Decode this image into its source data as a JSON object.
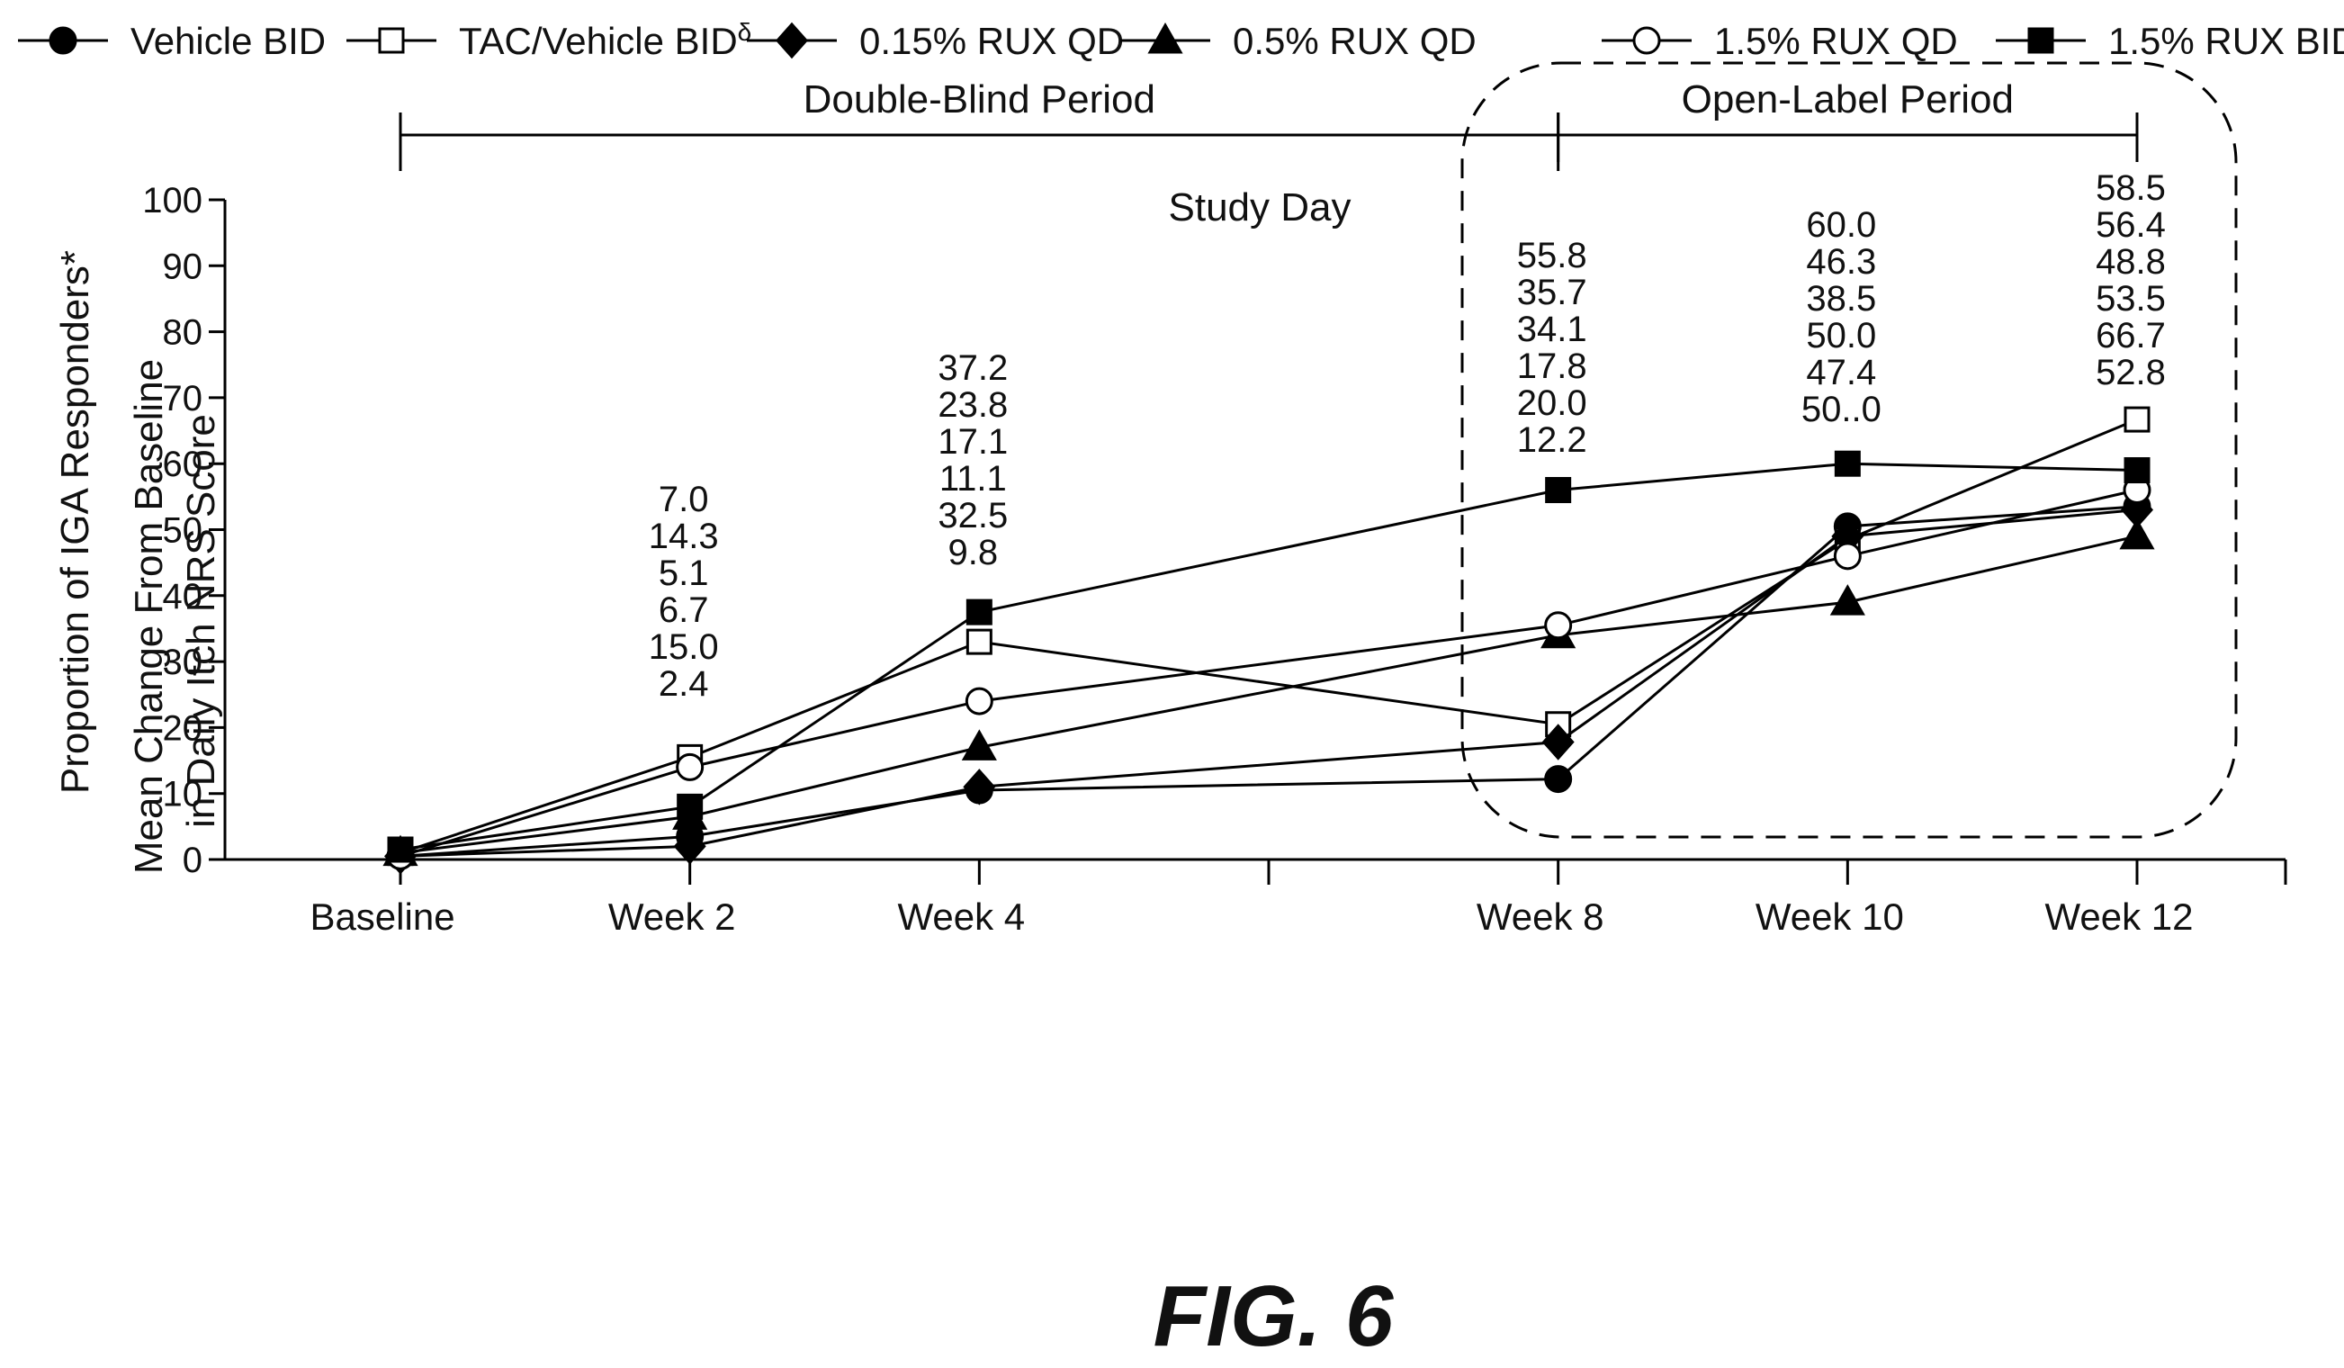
{
  "figure_label": "FIG. 6",
  "chart_data": {
    "type": "line",
    "title": "Study Day",
    "ylabel": "Proportion of IGA Responders*",
    "ylabel_overlay": [
      "Mean Change From Baseline",
      "in Daily Itch NRS Score"
    ],
    "xlabel": "",
    "ylim": [
      0,
      100
    ],
    "yticks": [
      0,
      10,
      20,
      30,
      40,
      50,
      60,
      70,
      80,
      90,
      100
    ],
    "categories": [
      "Baseline",
      "Week 2",
      "Week 4",
      "",
      "Week 8",
      "Week 10",
      "Week 12"
    ],
    "x": [
      0,
      2,
      4,
      6,
      8,
      10,
      12
    ],
    "periods": [
      {
        "label": "Double-Blind Period",
        "from": 0,
        "to": 8
      },
      {
        "label": "Open-Label Period",
        "from": 8,
        "to": 12
      }
    ],
    "legend_position": "top",
    "series": [
      {
        "name": "Vehicle BID",
        "marker": "filled-circle",
        "x": [
          0,
          2,
          4,
          8,
          10,
          12
        ],
        "values": [
          0.5,
          3.5,
          10.5,
          12.2,
          50.5,
          53.5
        ]
      },
      {
        "name": "TAC/Vehicle BID",
        "name_sup": "δ",
        "marker": "open-square",
        "x": [
          0,
          2,
          4,
          8,
          10,
          12
        ],
        "values": [
          1,
          15.5,
          33,
          20.5,
          48.5,
          66.7
        ]
      },
      {
        "name": "0.15% RUX QD",
        "marker": "filled-diamond",
        "x": [
          0,
          2,
          4,
          8,
          10,
          12
        ],
        "values": [
          0.5,
          2,
          11,
          17.8,
          49,
          53
        ]
      },
      {
        "name": "0.5% RUX QD",
        "marker": "filled-triangle",
        "x": [
          0,
          2,
          4,
          8,
          10,
          12
        ],
        "values": [
          1,
          6.5,
          17,
          34,
          39,
          49
        ]
      },
      {
        "name": "1.5% RUX QD",
        "marker": "open-circle",
        "x": [
          0,
          2,
          4,
          8,
          10,
          12
        ],
        "values": [
          0.5,
          14,
          24,
          35.5,
          46,
          56
        ]
      },
      {
        "name": "1.5% RUX BID",
        "marker": "filled-square",
        "x": [
          0,
          2,
          4,
          8,
          10,
          12
        ],
        "values": [
          1.5,
          8,
          37.5,
          56,
          60,
          59
        ]
      }
    ],
    "annotations": [
      {
        "x": 2,
        "lines": [
          "7.0",
          "14.3",
          "5.1",
          "6.7",
          "15.0",
          "2.4"
        ]
      },
      {
        "x": 4,
        "lines": [
          "37.2",
          "23.8",
          "17.1",
          "11.1",
          "32.5",
          "9.8"
        ]
      },
      {
        "x": 8,
        "lines": [
          "55.8",
          "35.7",
          "34.1",
          "17.8",
          "20.0",
          "12.2"
        ]
      },
      {
        "x": 10,
        "lines": [
          "60.0",
          "46.3",
          "38.5",
          "50.0",
          "47.4",
          "50..0"
        ]
      },
      {
        "x": 12,
        "lines": [
          "58.5",
          "56.4",
          "48.8",
          "53.5",
          "66.7",
          "52.8"
        ]
      }
    ]
  }
}
